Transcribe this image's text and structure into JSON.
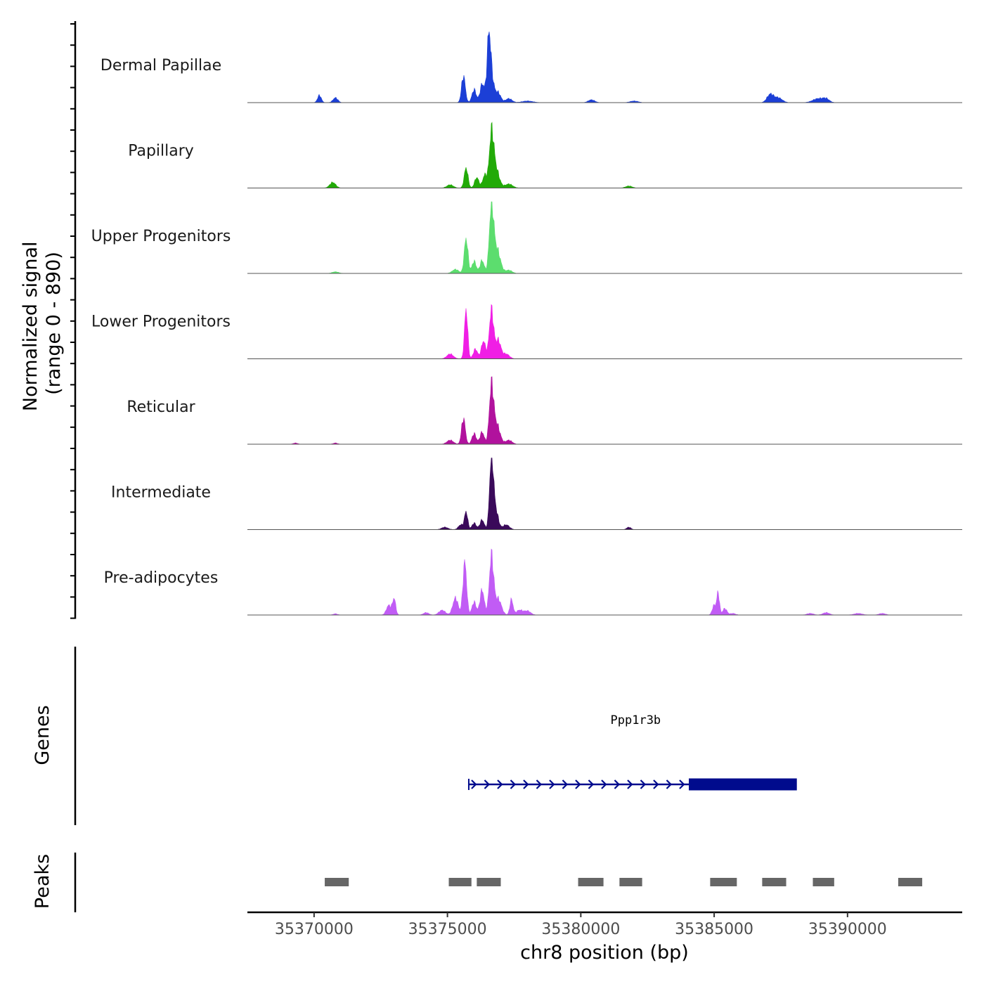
{
  "chart_data": {
    "type": "area",
    "title": "",
    "ylabel_line1": "Normalized signal",
    "ylabel_line2": "(range 0 - 890)",
    "ylim": [
      0,
      890
    ],
    "xlabel": "chr8 position (bp)",
    "xlim": [
      35367500,
      35394300
    ],
    "xticks": [
      35370000,
      35375000,
      35380000,
      35385000,
      35390000
    ],
    "xtick_labels": [
      "35370000",
      "35375000",
      "35380000",
      "35385000",
      "35390000"
    ],
    "genes_label": "Genes",
    "peaks_label": "Peaks",
    "baseline_color": "#555555",
    "tracks": [
      {
        "name": "Dermal Papillae",
        "color": "#1c3fd6",
        "peaks": [
          [
            35370200,
            90,
            70
          ],
          [
            35370800,
            60,
            90
          ],
          [
            35375600,
            330,
            70
          ],
          [
            35376000,
            160,
            80
          ],
          [
            35376300,
            220,
            80
          ],
          [
            35376600,
            450,
            110
          ],
          [
            35376550,
            480,
            60
          ],
          [
            35376900,
            120,
            100
          ],
          [
            35377300,
            50,
            120
          ],
          [
            35378000,
            20,
            200
          ],
          [
            35380400,
            35,
            120
          ],
          [
            35382000,
            20,
            150
          ],
          [
            35387100,
            100,
            120
          ],
          [
            35387400,
            60,
            150
          ],
          [
            35388900,
            50,
            200
          ],
          [
            35389200,
            40,
            120
          ]
        ]
      },
      {
        "name": "Papillary",
        "color": "#22aa08",
        "peaks": [
          [
            35370700,
            70,
            110
          ],
          [
            35375100,
            40,
            120
          ],
          [
            35375700,
            250,
            70
          ],
          [
            35376100,
            130,
            80
          ],
          [
            35376400,
            160,
            80
          ],
          [
            35376650,
            600,
            80
          ],
          [
            35376800,
            250,
            130
          ],
          [
            35377300,
            50,
            140
          ],
          [
            35381800,
            25,
            120
          ]
        ]
      },
      {
        "name": "Upper Progenitors",
        "color": "#5cdd6e",
        "peaks": [
          [
            35370800,
            20,
            120
          ],
          [
            35375300,
            50,
            120
          ],
          [
            35375700,
            430,
            70
          ],
          [
            35376000,
            150,
            80
          ],
          [
            35376300,
            160,
            80
          ],
          [
            35376650,
            800,
            80
          ],
          [
            35376850,
            300,
            130
          ],
          [
            35377300,
            40,
            120
          ]
        ]
      },
      {
        "name": "Lower Progenitors",
        "color": "#f01ee5",
        "peaks": [
          [
            35375100,
            60,
            120
          ],
          [
            35375700,
            610,
            60
          ],
          [
            35376050,
            120,
            80
          ],
          [
            35376350,
            220,
            80
          ],
          [
            35376650,
            600,
            80
          ],
          [
            35376900,
            230,
            100
          ],
          [
            35377200,
            60,
            120
          ]
        ]
      },
      {
        "name": "Reticular",
        "color": "#b1129d",
        "peaks": [
          [
            35369300,
            15,
            80
          ],
          [
            35370800,
            15,
            80
          ],
          [
            35375100,
            50,
            120
          ],
          [
            35375600,
            320,
            70
          ],
          [
            35376000,
            130,
            80
          ],
          [
            35376300,
            150,
            80
          ],
          [
            35376650,
            700,
            80
          ],
          [
            35376850,
            240,
            120
          ],
          [
            35377300,
            50,
            120
          ]
        ]
      },
      {
        "name": "Intermediate",
        "color": "#3a0a5a",
        "peaks": [
          [
            35374900,
            30,
            120
          ],
          [
            35375500,
            60,
            90
          ],
          [
            35375700,
            220,
            60
          ],
          [
            35376000,
            80,
            80
          ],
          [
            35376300,
            120,
            80
          ],
          [
            35376650,
            890,
            70
          ],
          [
            35376800,
            250,
            100
          ],
          [
            35377200,
            60,
            120
          ],
          [
            35381800,
            30,
            80
          ]
        ]
      },
      {
        "name": "Pre-adipocytes",
        "color": "#c15cf5",
        "peaks": [
          [
            35370800,
            15,
            80
          ],
          [
            35372800,
            120,
            90
          ],
          [
            35373000,
            200,
            60
          ],
          [
            35374200,
            30,
            100
          ],
          [
            35374800,
            60,
            120
          ],
          [
            35375300,
            210,
            100
          ],
          [
            35375650,
            650,
            70
          ],
          [
            35376000,
            160,
            80
          ],
          [
            35376300,
            310,
            80
          ],
          [
            35376650,
            720,
            80
          ],
          [
            35376900,
            200,
            120
          ],
          [
            35377400,
            190,
            60
          ],
          [
            35377700,
            60,
            120
          ],
          [
            35378000,
            50,
            120
          ],
          [
            35385000,
            120,
            70
          ],
          [
            35385150,
            270,
            50
          ],
          [
            35385400,
            80,
            80
          ],
          [
            35385700,
            20,
            100
          ],
          [
            35388600,
            20,
            120
          ],
          [
            35389200,
            30,
            120
          ],
          [
            35390400,
            20,
            150
          ],
          [
            35391300,
            20,
            120
          ]
        ]
      }
    ],
    "gene": {
      "name": "Ppp1r3b",
      "color": "#000b8d",
      "start": 35375800,
      "end": 35388100,
      "thick_start": 35384050,
      "strand": "+"
    },
    "peak_regions": [
      [
        35370400,
        35371300
      ],
      [
        35375050,
        35375900
      ],
      [
        35376100,
        35377000
      ],
      [
        35379900,
        35380850
      ],
      [
        35381450,
        35382300
      ],
      [
        35384850,
        35385850
      ],
      [
        35386800,
        35387700
      ],
      [
        35388700,
        35389500
      ],
      [
        35391900,
        35392800
      ]
    ],
    "peak_color": "#666666"
  }
}
